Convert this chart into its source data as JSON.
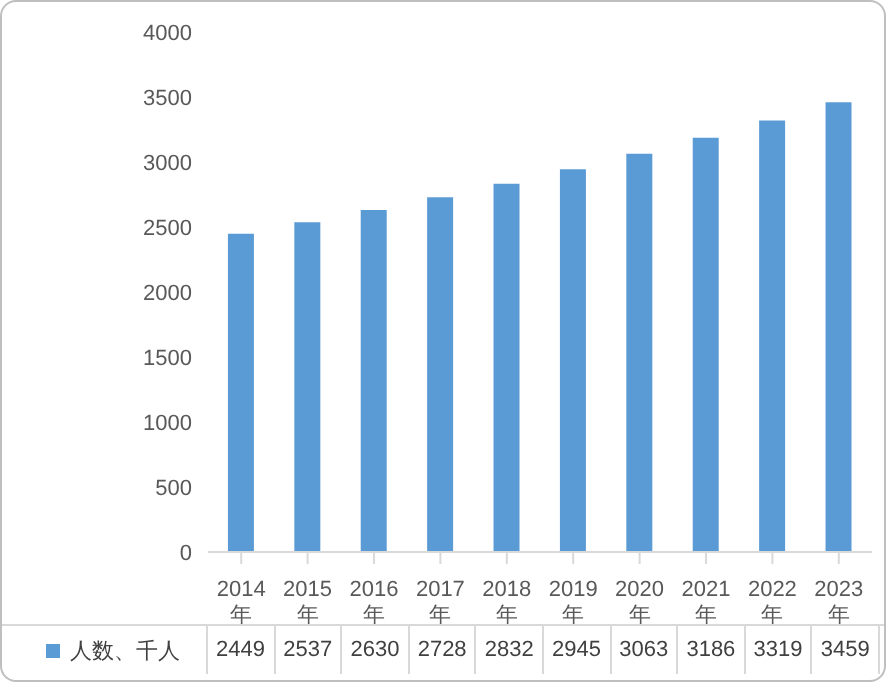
{
  "chart_data": {
    "type": "bar",
    "categories": [
      "2014年",
      "2015年",
      "2016年",
      "2017年",
      "2018年",
      "2019年",
      "2020年",
      "2021年",
      "2022年",
      "2023年"
    ],
    "series": [
      {
        "name": "人数、千人",
        "color": "#5b9bd5",
        "values": [
          2449,
          2537,
          2630,
          2728,
          2832,
          2945,
          3063,
          3186,
          3319,
          3459
        ]
      }
    ],
    "ylim": [
      0,
      4000
    ],
    "yticks": [
      0,
      500,
      1000,
      1500,
      2000,
      2500,
      3000,
      3500,
      4000
    ],
    "legend": "bottom",
    "data_labels": true
  }
}
